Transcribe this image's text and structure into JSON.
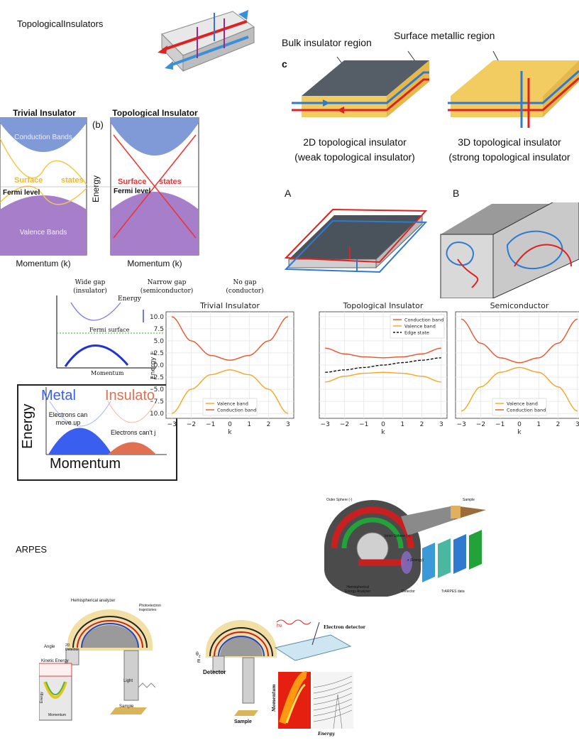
{
  "sections": {
    "topological": "TopologicalInsulators",
    "arpes": "ARPES"
  },
  "fig_c": {
    "bulk_label": "Bulk insulator region",
    "surface_label": "Surface metallic region",
    "panel_letter": "c",
    "caption_2d_line1": "2D topological insulator",
    "caption_2d_line2": "(weak topological insulator)",
    "caption_3d_line1": "3D topological insulator",
    "caption_3d_line2": "(strong topological insulator"
  },
  "fig_ab": {
    "label_a": "A",
    "label_b": "B"
  },
  "band_fig": {
    "trivial_title": "Trivial Insulator",
    "topo_title": "Topological Insulator",
    "panel_b": "(b)",
    "conduction": "Conduction Bands",
    "valence": "Valence Bands",
    "surface": "Surface",
    "states": "states",
    "fermi": "Fermi level",
    "energy": "Energy",
    "momentum": "Momentum (k)"
  },
  "gap_fig": {
    "wide_line1": "Wide gap",
    "wide_line2": "(insulator)",
    "narrow_line1": "Narrow gap",
    "narrow_line2": "(semiconductor)",
    "nogap_line1": "No gap",
    "nogap_line2": "(conductor)",
    "fermi_surface": "Fermi surface",
    "momentum": "Momentum",
    "energy": "Energy"
  },
  "metal_fig": {
    "metal": "Metal",
    "insulator": "Insulato",
    "energy": "Energy",
    "momentum": "Momentum",
    "electrons_can": "Electrons can",
    "move_up": "move up",
    "electrons_cant": "Electrons can't j"
  },
  "chart_data": {
    "type": "line",
    "xlabel": "k",
    "ylabel": "Energy E",
    "xlim": [
      -3.3,
      3.3
    ],
    "ylim": [
      -11,
      11
    ],
    "xticks": [
      -3,
      -2,
      -1,
      0,
      1,
      2,
      3
    ],
    "xtick_labels": [
      "−3",
      "−2",
      "−1",
      "0",
      "1",
      "2",
      "3"
    ],
    "yticks": [
      10,
      7.5,
      5,
      2.5,
      0,
      -2.5,
      -5,
      -7.5,
      -10
    ],
    "ytick_labels": [
      "10.0",
      "7.5",
      "5.0",
      "2.5",
      "0.0",
      "−2.5",
      "−5.0",
      "−7.5",
      "−10.0"
    ],
    "grid": true,
    "colors": {
      "valence": "#f5a623",
      "conduction": "#e8542a",
      "edge": "#111111",
      "grid": "#e6e6e6"
    },
    "panels": [
      {
        "title": "Trivial Insulator",
        "legend": "bottom-center",
        "x": [
          -3,
          -2,
          -1,
          0,
          1,
          2,
          3
        ],
        "series": [
          {
            "name": "Valence band",
            "values": [
              -10,
              -5,
              -2,
              -1,
              -2,
              -5,
              -10
            ]
          },
          {
            "name": "Conduction band",
            "values": [
              10,
              5,
              2,
              1,
              2,
              5,
              10
            ]
          }
        ]
      },
      {
        "title": "Topological Insulator",
        "legend": "top-right",
        "x": [
          -3,
          -2,
          -1,
          0,
          1,
          2,
          3
        ],
        "series": [
          {
            "name": "Conduction band",
            "values": [
              3.5,
              2.3,
              1.7,
              1.5,
              1.7,
              2.3,
              3.5
            ]
          },
          {
            "name": "Valence band",
            "values": [
              -3.5,
              -2.3,
              -1.7,
              -1.5,
              -1.7,
              -2.3,
              -3.5
            ]
          },
          {
            "name": "Edge state",
            "values": [
              -1.5,
              -1.0,
              -0.5,
              0,
              0.5,
              1.0,
              1.5
            ]
          }
        ]
      },
      {
        "title": "Semiconductor",
        "legend": "bottom-center",
        "x": [
          -3,
          -2,
          -1,
          0,
          1,
          2,
          3
        ],
        "series": [
          {
            "name": "Valence band",
            "values": [
              -9.5,
              -4.5,
              -1.5,
              -0.5,
              -1.5,
              -4.5,
              -9.5
            ]
          },
          {
            "name": "Conduction band",
            "values": [
              9.5,
              4.5,
              1.5,
              0.5,
              1.5,
              4.5,
              9.5
            ]
          }
        ]
      }
    ]
  },
  "arpes_fig1": {
    "outer": "Outer Sphere (-)",
    "inner": "Inner Sphere (+)",
    "sample": "Sample",
    "z_energy": "z (Energy)",
    "hemi_line1": "Hemispherical",
    "hemi_line2": "Energy Analyser",
    "detector": "Detector",
    "trarpes": "TrARPES data"
  },
  "arpes_fig2": {
    "hemi": "Hemispherical analyzer",
    "photo_line1": "Photoelectron",
    "photo_line2": "trajectories",
    "angle": "Angle",
    "det_line1": "2D",
    "det_line2": "Detector",
    "kinetic": "Kinetic Energy",
    "light": "Light",
    "sample": "Sample",
    "energy": "Energy",
    "momentum": "Momentum"
  },
  "arpes_fig3": {
    "detector": "Detector",
    "sample": "Sample",
    "electron_detector": "Electron detector",
    "momentum": "Momentum",
    "energy": "Energy",
    "hv": "hν"
  }
}
